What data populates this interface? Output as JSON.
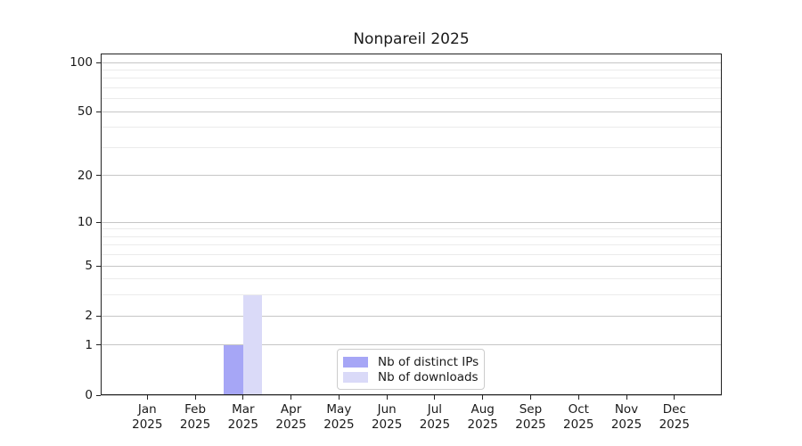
{
  "figure": {
    "background": "#ffffff",
    "text_color": "#1a1a1a",
    "axis_color": "#222222",
    "grid_major_color": "#c6c6c6",
    "grid_minor_color": "#ebebeb"
  },
  "chart_data": {
    "type": "bar",
    "title": "Nonpareil 2025",
    "xlabel": "",
    "ylabel": "",
    "categories": [
      "Jan 2025",
      "Feb 2025",
      "Mar 2025",
      "Apr 2025",
      "May 2025",
      "Jun 2025",
      "Jul 2025",
      "Aug 2025",
      "Sep 2025",
      "Oct 2025",
      "Nov 2025",
      "Dec 2025"
    ],
    "series": [
      {
        "name": "Nb of distinct IPs",
        "color": "#a6a6f6",
        "values": [
          0,
          0,
          1,
          0,
          0,
          0,
          0,
          0,
          0,
          0,
          0,
          0
        ]
      },
      {
        "name": "Nb of downloads",
        "color": "#dadaf8",
        "values": [
          0,
          0,
          3,
          0,
          0,
          0,
          0,
          0,
          0,
          0,
          0,
          0
        ]
      }
    ],
    "y_axis": {
      "scale": "log1p",
      "tick_values": [
        0,
        1,
        2,
        5,
        10,
        20,
        50,
        100
      ],
      "tick_labels": [
        "0",
        "1",
        "2",
        "5",
        "10",
        "20",
        "50",
        "100"
      ],
      "minor_gridline_values": [
        3,
        4,
        6,
        7,
        8,
        9,
        30,
        40,
        60,
        70,
        80,
        90
      ],
      "range": [
        0,
        113
      ],
      "grid": true
    },
    "legend": {
      "location": "inside-bottom-center"
    }
  }
}
